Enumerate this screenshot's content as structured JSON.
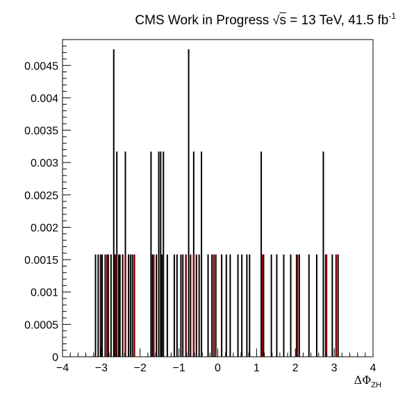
{
  "title": {
    "prefix": "CMS Work in Progress",
    "sqrt_symbol": "√",
    "sqrt_var": "s",
    "energy": " = 13 TeV, 41.5 fb",
    "lumi_exponent": "-1"
  },
  "colors": {
    "frame": "#000000",
    "signal": "#000000",
    "background": "#8b0000"
  },
  "chart_data": {
    "type": "bar",
    "title": "CMS Work in Progress √s = 13 TeV, 41.5 fb-1",
    "xlabel_symbol": "ΔΦ",
    "xlabel_sub": "ZH",
    "ylabel": "",
    "xlim": [
      -4,
      4
    ],
    "ylim": [
      0,
      0.0049
    ],
    "x_ticks": [
      "−4",
      "−3",
      "−2",
      "−1",
      "0",
      "1",
      "2",
      "3",
      "4"
    ],
    "x_tick_values": [
      -4,
      -3,
      -2,
      -1,
      0,
      1,
      2,
      3,
      4
    ],
    "y_ticks": [
      "0",
      "0.0005",
      "0.001",
      "0.0015",
      "0.002",
      "0.0025",
      "0.003",
      "0.0035",
      "0.004",
      "0.0045"
    ],
    "y_tick_values": [
      0,
      0.0005,
      0.001,
      0.0015,
      0.002,
      0.0025,
      0.003,
      0.0035,
      0.004,
      0.0045
    ],
    "series": [
      {
        "color": "#000000",
        "x": [
          -3.15,
          -3.08,
          -3.02,
          -2.98,
          -2.9,
          -2.82,
          -2.75,
          -2.68,
          -2.65,
          -2.6,
          -2.55,
          -2.52,
          -2.45,
          -2.38,
          -2.3,
          -2.25,
          -2.2,
          -1.72,
          -1.68,
          -1.58,
          -1.52,
          -1.47,
          -1.44,
          -1.4,
          -1.3,
          -1.12,
          -1.05,
          -0.95,
          -0.9,
          -0.82,
          -0.75,
          -0.7,
          -0.62,
          -0.55,
          -0.48,
          -0.42,
          -0.25,
          -0.15,
          -0.05,
          0.1,
          0.22,
          0.32,
          0.52,
          0.62,
          0.75,
          0.82,
          1.12,
          1.18,
          1.38,
          1.52,
          1.7,
          1.88,
          2.03,
          2.1,
          2.35,
          2.55,
          2.72,
          2.78,
          2.95,
          3.1
        ],
        "values": [
          0.00158,
          0.00158,
          0.00158,
          0.00158,
          0.00158,
          0.00158,
          0.00158,
          0.00475,
          0.00158,
          0.00317,
          0.00158,
          0.00158,
          0.00158,
          0.00317,
          0.00158,
          0.00158,
          0.00158,
          0.00317,
          0.00158,
          0.00158,
          0.00317,
          0.00317,
          0.00158,
          0.00317,
          0.00158,
          0.00158,
          0.00158,
          0.00158,
          0.00158,
          0.00158,
          0.00475,
          0.00158,
          0.00317,
          0.00158,
          0.00158,
          0.00317,
          0.00158,
          0.00158,
          0.00158,
          0.00158,
          0.00158,
          0.00158,
          0.00158,
          0.00158,
          0.00158,
          0.00158,
          0.00317,
          0.00158,
          0.00158,
          0.00158,
          0.00158,
          0.00158,
          0.00158,
          0.00158,
          0.00158,
          0.00158,
          0.00317,
          0.00158,
          0.00158,
          0.00158
        ]
      },
      {
        "color": "#8b0000",
        "x": [
          -2.85,
          -2.63,
          -2.38,
          -2.15,
          -1.65,
          -0.82,
          -0.62,
          -0.1,
          1.15,
          2.05,
          2.8,
          3.05
        ],
        "values": [
          0.00158,
          0.00158,
          0.00158,
          0.00158,
          0.00158,
          0.00158,
          0.00158,
          0.00158,
          0.00158,
          0.00158,
          0.00158,
          0.00158
        ]
      }
    ]
  }
}
